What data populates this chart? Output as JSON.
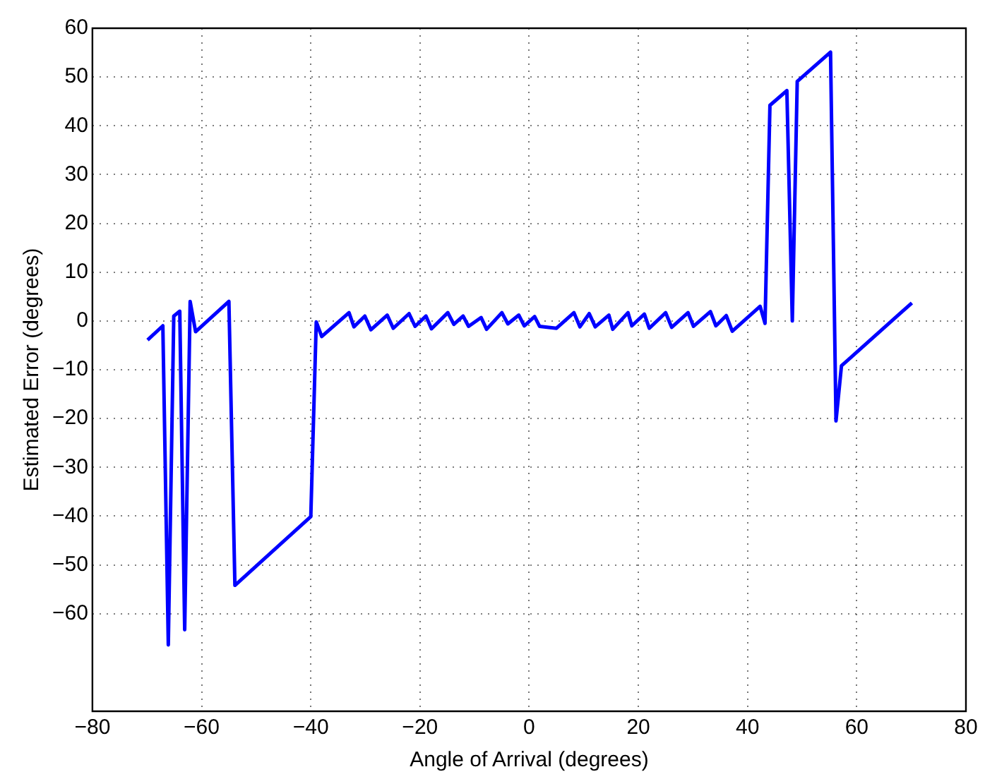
{
  "chart_data": {
    "type": "line",
    "xlabel": "Angle of Arrival (degrees)",
    "ylabel": "Estimated Error (degrees)",
    "x": [
      -69.9,
      -67.1,
      -66.1,
      -65.1,
      -64.0,
      -63.1,
      -62.1,
      -61.1,
      -55.0,
      -53.9,
      -40.0,
      -39.0,
      -38.0,
      -33.0,
      -32.1,
      -30.1,
      -29.0,
      -26.0,
      -24.9,
      -22.0,
      -20.9,
      -18.9,
      -17.9,
      -14.9,
      -13.8,
      -12.1,
      -11.1,
      -8.8,
      -7.8,
      -5.0,
      -3.9,
      -1.9,
      -0.9,
      1.0,
      1.9,
      5.0,
      8.2,
      9.3,
      11.0,
      12.1,
      14.6,
      15.3,
      18.1,
      18.8,
      21.1,
      22.0,
      25.0,
      26.1,
      29.1,
      30.1,
      33.2,
      34.2,
      36.1,
      37.2,
      42.3,
      43.2,
      44.1,
      47.2,
      48.2,
      49.1,
      55.2,
      56.2,
      57.2,
      70.1
    ],
    "series": [
      {
        "color": "#0000ff",
        "values": [
          -3.9,
          -1.0,
          -66.4,
          1.0,
          2.0,
          -63.3,
          4.0,
          -2.2,
          4.0,
          -54.2,
          -40.1,
          -0.2,
          -3.2,
          1.7,
          -1.2,
          1.0,
          -1.8,
          1.2,
          -1.5,
          1.5,
          -1.1,
          1.0,
          -1.6,
          1.7,
          -0.7,
          1.0,
          -1.1,
          0.7,
          -1.7,
          1.7,
          -0.6,
          1.2,
          -1.0,
          0.9,
          -1.1,
          -1.5,
          1.7,
          -1.2,
          1.5,
          -1.2,
          1.2,
          -1.7,
          1.7,
          -1.0,
          1.4,
          -1.5,
          1.7,
          -1.3,
          1.7,
          -1.1,
          1.9,
          -1.0,
          1.1,
          -2.1,
          3.0,
          -0.5,
          44.2,
          47.2,
          0.0,
          49.1,
          55.1,
          -20.5,
          -9.2,
          3.7
        ]
      }
    ],
    "xlim": [
      -80,
      80
    ],
    "xticks": [
      -80,
      -60,
      -40,
      -20,
      0,
      20,
      40,
      60,
      80
    ],
    "ylim": [
      -80,
      60
    ],
    "yticks": [
      -60,
      -50,
      -40,
      -30,
      -20,
      -10,
      0,
      10,
      20,
      30,
      40,
      50,
      60
    ],
    "grid": true,
    "legend": false,
    "marker": "none",
    "line_style": "solid"
  }
}
